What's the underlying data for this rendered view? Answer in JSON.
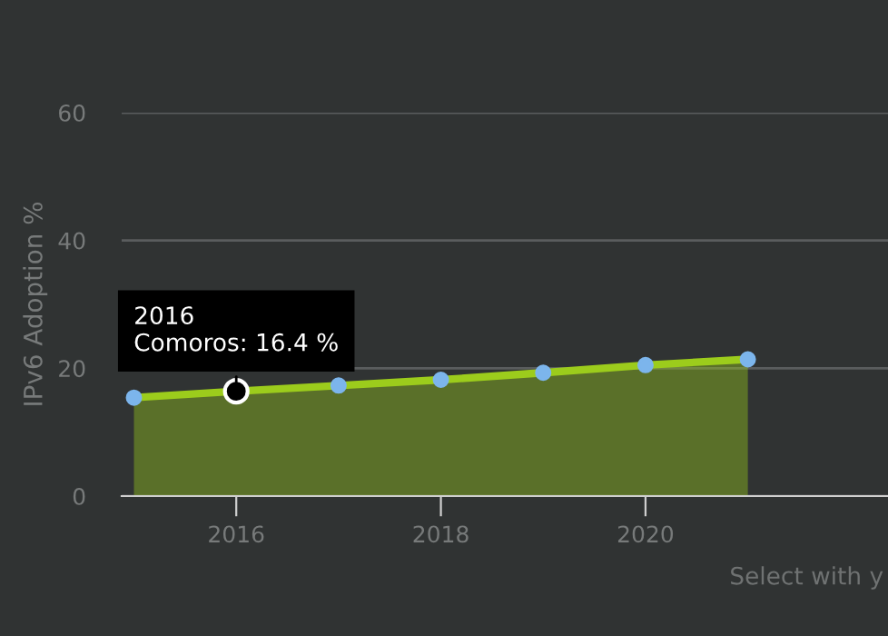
{
  "chart_data": {
    "type": "area",
    "ylabel": "IPv6 Adoption %",
    "x": [
      2015,
      2016,
      2017,
      2018,
      2019,
      2020,
      2021
    ],
    "series": [
      {
        "color": "#9ccc1c",
        "colors": [
          "#7cb5ec",
          "#7cb5ec",
          "#7cb5ec",
          "#7cb5ec",
          "#7cb5ec",
          "#7cb5ec",
          "#7cb5ec"
        ],
        "values": [
          15.4,
          16.4,
          17.3,
          18.2,
          19.3,
          20.5,
          21.4
        ]
      }
    ],
    "xlim": [
      2014.88,
      2022.37
    ],
    "ylim": [
      0,
      60
    ],
    "xticks": [
      2016,
      2018,
      2020
    ],
    "yticks": [
      0,
      20,
      40,
      60
    ],
    "grid": "y",
    "marker": "circle",
    "annotations": [
      {
        "text": "2016\nComoros: 16.4 %",
        "x": 2016,
        "y": 16.4
      },
      "Select with y"
    ]
  }
}
